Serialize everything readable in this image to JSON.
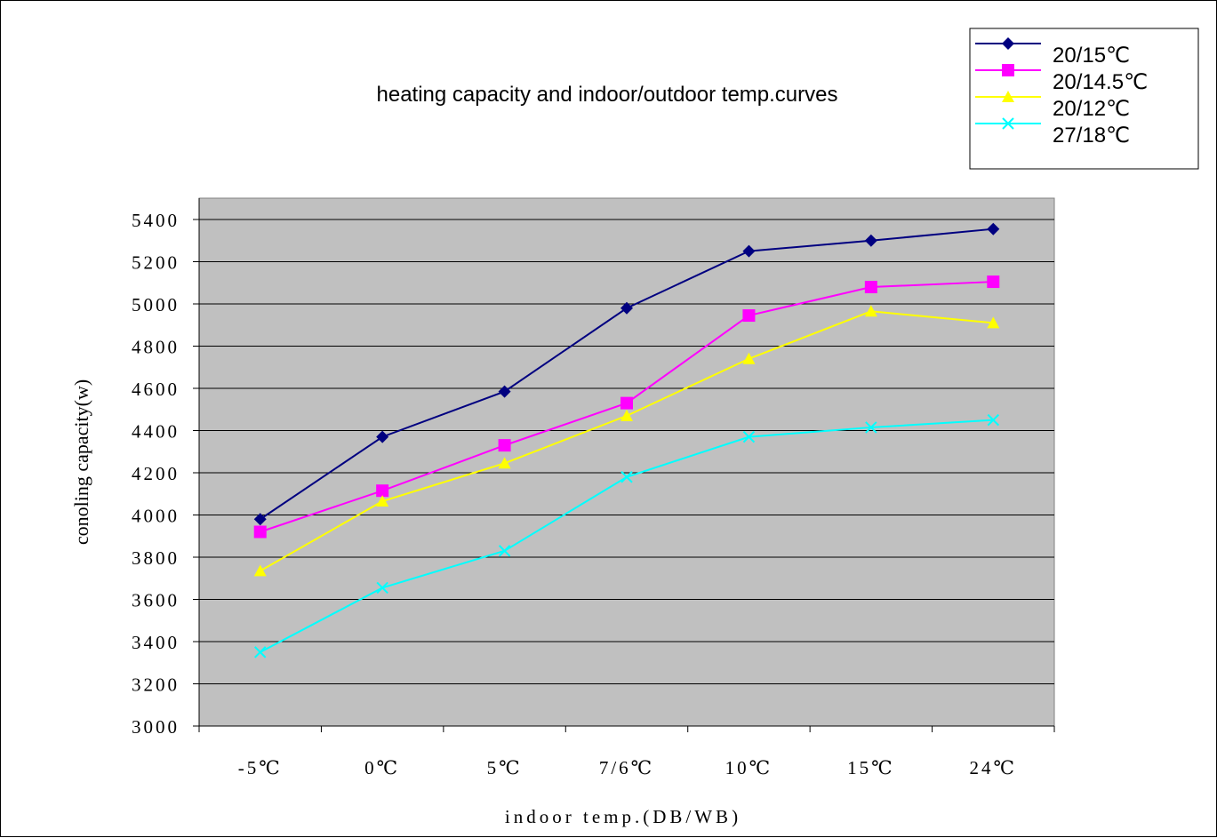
{
  "chart_data": {
    "type": "line",
    "title": "heating capacity and indoor/outdoor temp.curves",
    "xlabel": "indoor temp.(DB/WB)",
    "ylabel": "conoling capacity(w)",
    "categories": [
      "-5℃",
      "0℃",
      "5℃",
      "7/6℃",
      "10℃",
      "15℃",
      "24℃"
    ],
    "ylim": [
      3000,
      5400
    ],
    "yticks": [
      3000,
      3200,
      3400,
      3600,
      3800,
      4000,
      4200,
      4400,
      4600,
      4800,
      5000,
      5200,
      5400
    ],
    "grid": true,
    "legend_position": "top-right",
    "plot_background": "#c0c0c0",
    "series": [
      {
        "name": "20/15℃",
        "color": "#000080",
        "marker": "diamond",
        "values": [
          3980,
          4370,
          4585,
          4980,
          5250,
          5300,
          5355
        ]
      },
      {
        "name": "20/14.5℃",
        "color": "#ff00ff",
        "marker": "square",
        "values": [
          3920,
          4115,
          4330,
          4530,
          4945,
          5080,
          5105
        ]
      },
      {
        "name": "20/12℃",
        "color": "#ffff00",
        "marker": "triangle",
        "values": [
          3735,
          4065,
          4245,
          4470,
          4740,
          4965,
          4910
        ]
      },
      {
        "name": "27/18℃",
        "color": "#00ffff",
        "marker": "x",
        "values": [
          3350,
          3655,
          3830,
          4180,
          4370,
          4415,
          4450
        ]
      }
    ]
  }
}
